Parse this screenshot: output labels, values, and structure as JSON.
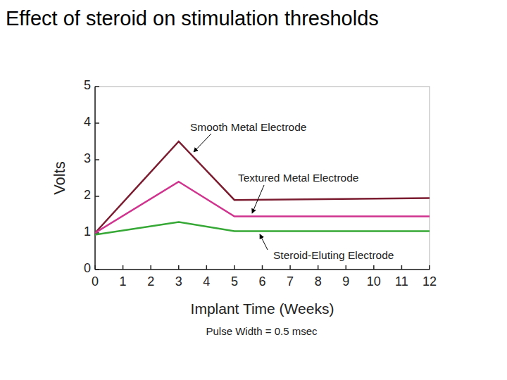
{
  "chart_data": {
    "type": "line",
    "title": "Effect of steroid on stimulation thresholds",
    "x_label": "Implant Time (Weeks)",
    "y_label": "Volts",
    "subtitle": "Pulse Width = 0.5 msec",
    "x": [
      0,
      3,
      5,
      12
    ],
    "series": [
      {
        "name": "Smooth Metal Electrode",
        "color": "#7b1c30",
        "values": [
          1.0,
          3.5,
          1.9,
          1.95
        ]
      },
      {
        "name": "Textured Metal Electrode",
        "color": "#d0338e",
        "values": [
          1.0,
          2.4,
          1.45,
          1.45
        ]
      },
      {
        "name": "Steroid-Eluting Electrode",
        "color": "#35a835",
        "values": [
          0.95,
          1.3,
          1.05,
          1.05
        ]
      }
    ],
    "xlim": [
      0,
      12
    ],
    "ylim": [
      0,
      5
    ],
    "xticks": [
      0,
      1,
      2,
      3,
      4,
      5,
      6,
      7,
      8,
      9,
      10,
      11,
      12
    ],
    "yticks": [
      0,
      1,
      2,
      3,
      4,
      5
    ],
    "grid": false
  }
}
